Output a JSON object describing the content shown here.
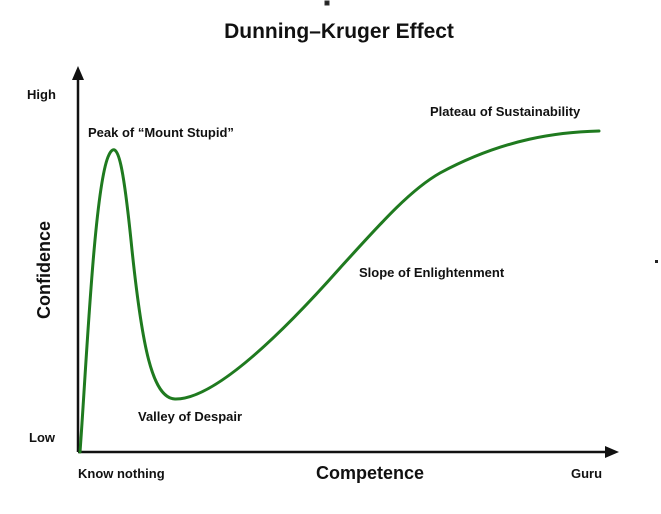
{
  "title": "Dunning–Kruger Effect",
  "axes": {
    "x_title": "Competence",
    "y_title": "Confidence",
    "x_start_label": "Know nothing",
    "x_end_label": "Guru",
    "y_low_label": "Low",
    "y_high_label": "High"
  },
  "curve_color": "#1f7a1f",
  "stages": [
    {
      "label": "Peak of “Mount Stupid”"
    },
    {
      "label": "Valley of Despair"
    },
    {
      "label": "Slope of Enlightenment"
    },
    {
      "label": "Plateau of Sustainability"
    }
  ]
}
